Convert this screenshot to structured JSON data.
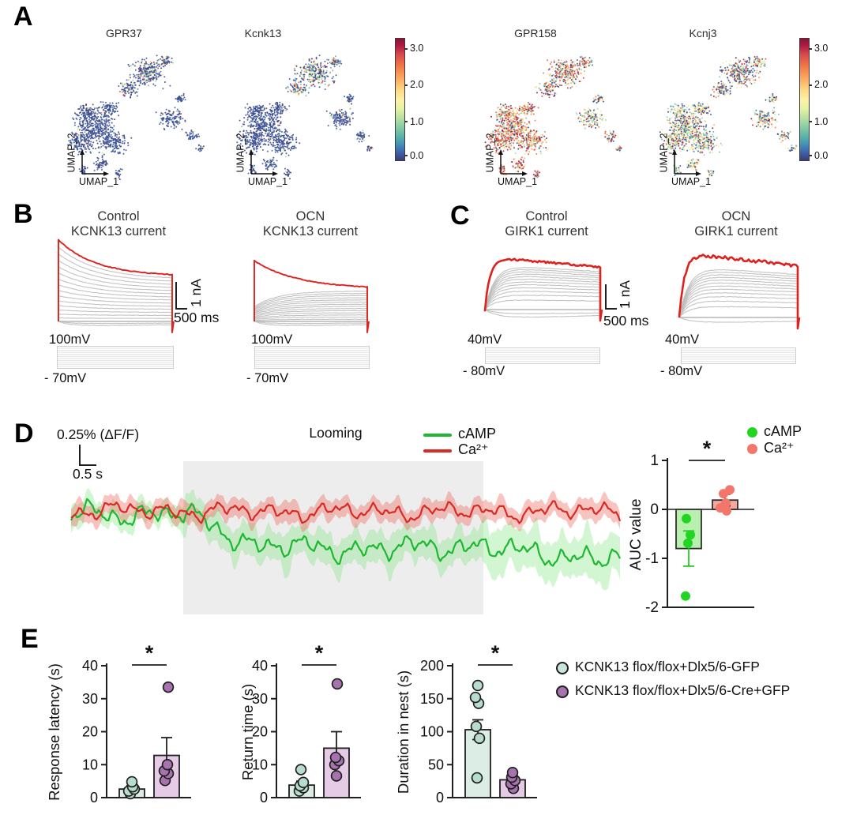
{
  "panels": {
    "A": {
      "label": "A",
      "colorbar_ticklabels": [
        "3.0",
        "2.0",
        "1.0",
        "0.0"
      ]
    },
    "B": {
      "label": "B",
      "scale_v": "1 nA",
      "scale_h": "500 ms"
    },
    "C": {
      "label": "C",
      "scale_v": "1 nA",
      "scale_h": "500 ms"
    },
    "D": {
      "label": "D"
    },
    "E": {
      "label": "E",
      "sig": "*",
      "legend": [
        {
          "label": "KCNK13 flox/flox+Dlx5/6-GFP",
          "color": "#c9e5d9"
        },
        {
          "label": "KCNK13 flox/flox+Dlx5/6-Cre+GFP",
          "color": "#a673ae"
        }
      ]
    }
  },
  "chart_data": [
    {
      "type": "scatter",
      "title": "GPR37",
      "xlabel": "UMAP_1",
      "ylabel": "UMAP_2",
      "colorbar": {
        "min": 0.0,
        "max": 3.0,
        "ticks": [
          3.0,
          2.0,
          1.0,
          0.0
        ]
      },
      "expression": {
        "main": [
          0.96,
          0.03,
          0.01
        ],
        "upper": [
          0.72,
          0.2,
          0.08
        ],
        "right": [
          0.93,
          0.05,
          0.02
        ]
      },
      "seed": 11
    },
    {
      "type": "scatter",
      "title": "Kcnk13",
      "xlabel": "UMAP_1",
      "ylabel": "UMAP_2",
      "colorbar": {
        "min": 0.0,
        "max": 3.0,
        "ticks": [
          3.0,
          2.0,
          1.0,
          0.0
        ]
      },
      "expression": {
        "main": [
          0.94,
          0.05,
          0.01
        ],
        "upper": [
          0.5,
          0.36,
          0.14
        ],
        "right": [
          0.88,
          0.09,
          0.03
        ]
      },
      "seed": 23
    },
    {
      "type": "scatter",
      "title": "GPR158",
      "xlabel": "UMAP_1",
      "ylabel": "UMAP_2",
      "colorbar": {
        "min": 0.0,
        "max": 3.0,
        "ticks": [
          3.0,
          2.0,
          1.0,
          0.0
        ]
      },
      "expression": {
        "main": [
          0.1,
          0.32,
          0.58
        ],
        "upper": [
          0.22,
          0.36,
          0.42
        ],
        "right": [
          0.25,
          0.47,
          0.28
        ]
      },
      "seed": 37
    },
    {
      "type": "scatter",
      "title": "Kcnj3",
      "xlabel": "UMAP_1",
      "ylabel": "UMAP_2",
      "colorbar": {
        "min": 0.0,
        "max": 3.0,
        "ticks": [
          3.0,
          2.0,
          1.0,
          0.0
        ]
      },
      "expression": {
        "main": [
          0.24,
          0.58,
          0.18
        ],
        "upper": [
          0.38,
          0.38,
          0.24
        ],
        "right": [
          0.28,
          0.56,
          0.16
        ]
      },
      "seed": 49
    },
    {
      "type": "line",
      "title1": "Control",
      "title2": "KCNK13 current",
      "protocol": {
        "top": "100mV",
        "bottom": "- 70mV"
      },
      "n_sweeps": 15,
      "params": {
        "mode": "decay",
        "maxEnd": 57,
        "redStart": 103,
        "neg": [
          3,
          6
        ]
      },
      "seed": 5
    },
    {
      "type": "line",
      "title1": "OCN",
      "title2": "KCNK13 current",
      "protocol": {
        "top": "100mV",
        "bottom": "- 70mV"
      },
      "n_sweeps": 15,
      "params": {
        "mode": "ocn",
        "maxEnd": 41,
        "redStart": 77,
        "neg": [
          3,
          6
        ]
      },
      "seed": 6
    },
    {
      "type": "line",
      "title1": "Control",
      "title2": "GIRK1 current",
      "protocol": {
        "top": "40mV",
        "bottom": "- 80mV"
      },
      "n_sweeps": 13,
      "params": {
        "mode": "girk",
        "maxEnd": 60,
        "redPeak": 67,
        "neg": [
          6,
          11
        ],
        "redNoise": 1.1
      },
      "seed": 7
    },
    {
      "type": "line",
      "title1": "OCN",
      "title2": "GIRK1 current",
      "protocol": {
        "top": "40mV",
        "bottom": "- 80mV"
      },
      "n_sweeps": 13,
      "params": {
        "mode": "girk",
        "maxEnd": 68,
        "redPeak": 82,
        "neg": [
          7
        ],
        "redNoise": 1.9
      },
      "seed": 8
    },
    {
      "type": "line",
      "looming_label": "Looming",
      "scalebar_v": "0.25% (ΔF/F)",
      "scalebar_h": "0.5 s",
      "series": [
        {
          "name": "cAMP",
          "color": "#1db832",
          "band": "rgba(120,228,120,0.34)"
        },
        {
          "name": "Ca²⁺",
          "color": "#d92b26",
          "band": "rgba(236,100,90,0.38)"
        }
      ],
      "seed": 9
    },
    {
      "type": "bar",
      "ylabel": "AUC value",
      "ylim": [
        -2,
        1
      ],
      "yticks": [
        1,
        0,
        -1,
        -2
      ],
      "sig": "*",
      "series": [
        {
          "name": "cAMP",
          "value": -0.8,
          "err": 0.36,
          "bar_fill": "#b9f0b0",
          "bar_stroke": "#2f2f2f",
          "err_color": "#28c828",
          "point_fill": "#23d523",
          "points": [
            [
              -0.19,
              -3
            ],
            [
              -0.52,
              2
            ],
            [
              -0.69,
              -1
            ],
            [
              -1.77,
              -4
            ]
          ]
        },
        {
          "name": "Ca²⁺",
          "value": 0.19,
          "err": 0.12,
          "bar_fill": "#f6a79e",
          "bar_stroke": "#2f2f2f",
          "err_color": "#3a3a3a",
          "point_fill": "#f4766b",
          "points": [
            [
              0.4,
              6
            ],
            [
              0.32,
              -2
            ],
            [
              0.13,
              1
            ],
            [
              0.03,
              -6
            ],
            [
              -0.03,
              2
            ]
          ]
        }
      ]
    },
    {
      "type": "bar",
      "ylabel": "Response latency (s)",
      "ylim": [
        0,
        40
      ],
      "yticks": [
        0,
        10,
        20,
        30,
        40
      ],
      "sig": "*",
      "series": [
        {
          "value": 2.6,
          "err": 1.0,
          "bar_fill": "#dcede6",
          "bar_stroke": "#1f1f1f",
          "point_fill": "#b7dccd",
          "point_stroke": "#1f1f1f",
          "points": [
            [
              1.2,
              -2
            ],
            [
              2.0,
              -4
            ],
            [
              2.6,
              3
            ],
            [
              3.3,
              1
            ],
            [
              4.8,
              0
            ]
          ]
        },
        {
          "value": 12.8,
          "err": 5.4,
          "bar_fill": "#e6cbe7",
          "bar_stroke": "#1f1f1f",
          "point_fill": "#a673ae",
          "point_stroke": "#1f1f1f",
          "points": [
            [
              5.2,
              -2
            ],
            [
              7.3,
              2
            ],
            [
              8.1,
              -3
            ],
            [
              10.0,
              1
            ],
            [
              33.5,
              2
            ]
          ]
        }
      ]
    },
    {
      "type": "bar",
      "ylabel": "Return time (s)",
      "ylim": [
        0,
        40
      ],
      "yticks": [
        0,
        10,
        20,
        30,
        40
      ],
      "sig": "*",
      "series": [
        {
          "value": 3.8,
          "err": 1.2,
          "bar_fill": "#dcede6",
          "bar_stroke": "#1f1f1f",
          "point_fill": "#b7dccd",
          "point_stroke": "#1f1f1f",
          "points": [
            [
              2.0,
              -3
            ],
            [
              3.0,
              2
            ],
            [
              3.6,
              -2
            ],
            [
              4.6,
              2
            ],
            [
              8.5,
              -1
            ]
          ]
        },
        {
          "value": 15.0,
          "err": 5.0,
          "bar_fill": "#e6cbe7",
          "bar_stroke": "#1f1f1f",
          "point_fill": "#a673ae",
          "point_stroke": "#1f1f1f",
          "points": [
            [
              6.6,
              0
            ],
            [
              10.0,
              -2
            ],
            [
              11.2,
              3
            ],
            [
              12.2,
              -1
            ],
            [
              34.5,
              1
            ]
          ]
        }
      ]
    },
    {
      "type": "bar",
      "ylabel": "Duration in nest (s)",
      "ylim": [
        0,
        200
      ],
      "yticks": [
        0,
        50,
        100,
        150,
        200
      ],
      "sig": "*",
      "series": [
        {
          "value": 103,
          "err": 15,
          "bar_fill": "#dcede6",
          "bar_stroke": "#1f1f1f",
          "point_fill": "#b7dccd",
          "point_stroke": "#1f1f1f",
          "points": [
            [
              30,
              -1
            ],
            [
              90,
              2
            ],
            [
              108,
              -2
            ],
            [
              143,
              1
            ],
            [
              152,
              -3
            ],
            [
              170,
              0
            ]
          ]
        },
        {
          "value": 27,
          "err": 6,
          "bar_fill": "#e6cbe7",
          "bar_stroke": "#1f1f1f",
          "point_fill": "#a673ae",
          "point_stroke": "#1f1f1f",
          "points": [
            [
              14,
              1
            ],
            [
              21,
              -2
            ],
            [
              26,
              3
            ],
            [
              31,
              -1
            ],
            [
              38,
              0
            ]
          ]
        }
      ]
    }
  ]
}
